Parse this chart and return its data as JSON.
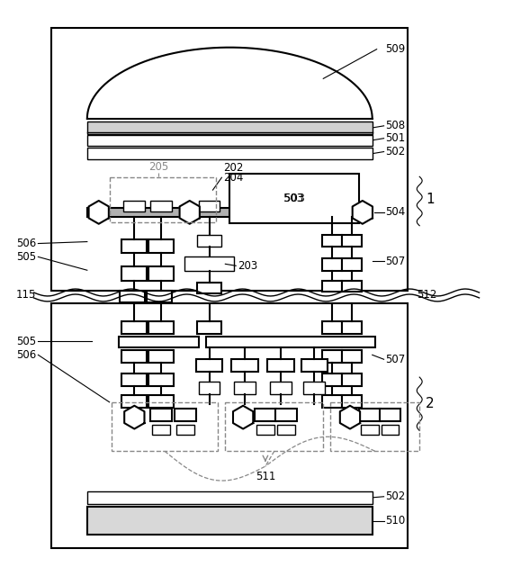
{
  "bg_color": "#ffffff",
  "line_color": "#000000",
  "dashed_color": "#888888",
  "fig_width": 5.69,
  "fig_height": 6.5
}
